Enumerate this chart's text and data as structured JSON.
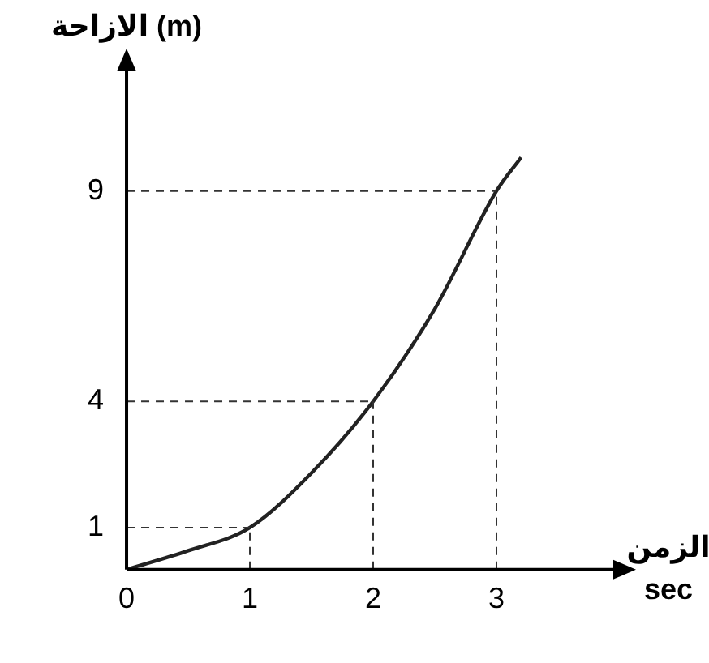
{
  "chart_data": {
    "type": "line",
    "xlabel": "الزمن\nsec",
    "ylabel": "الازاحة (m)",
    "series": [
      {
        "color": "#222222",
        "x": [
          0,
          0.5,
          1,
          1.5,
          2,
          2.5,
          3,
          3.2
        ],
        "values": [
          0,
          0.45,
          1,
          2.3,
          4,
          6.2,
          9,
          9.8
        ]
      }
    ],
    "xlim": [
      0,
      4
    ],
    "ylim": [
      0,
      12
    ],
    "xticks": [
      0,
      1,
      2,
      3
    ],
    "yticks": [
      1,
      4,
      9
    ],
    "grid": false,
    "legend": false,
    "marker": "none",
    "line_style": "solid",
    "ref_lines": [
      {
        "axis": "x",
        "value": 1,
        "line_style": "dashed"
      },
      {
        "axis": "x",
        "value": 2,
        "line_style": "dashed"
      },
      {
        "axis": "x",
        "value": 3,
        "line_style": "dashed"
      },
      {
        "axis": "y",
        "value": 1,
        "line_style": "dashed"
      },
      {
        "axis": "y",
        "value": 4,
        "line_style": "dashed"
      },
      {
        "axis": "y",
        "value": 9,
        "line_style": "dashed"
      }
    ]
  }
}
